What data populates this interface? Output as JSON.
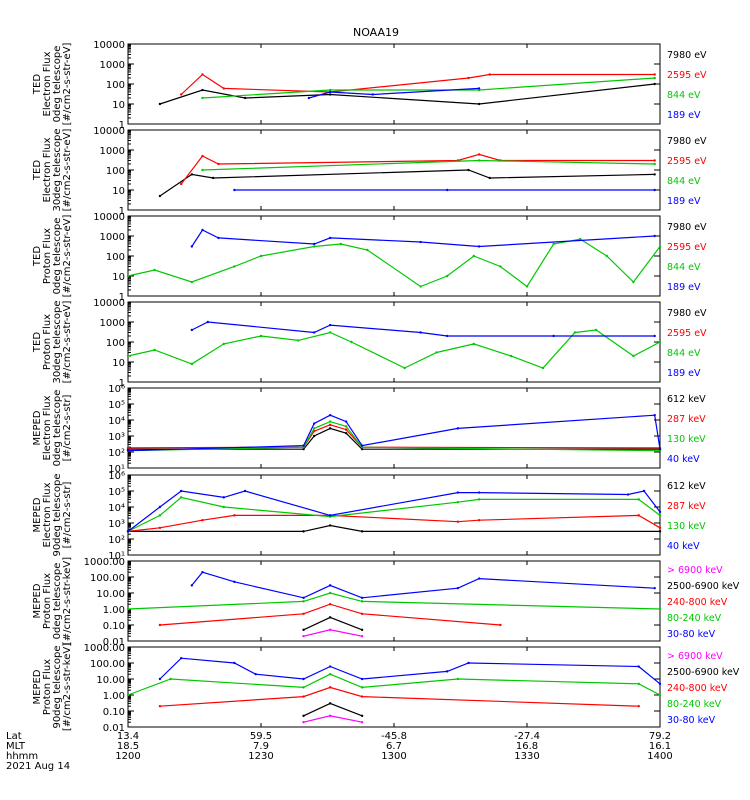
{
  "chart_data": [
    {
      "type": "line",
      "title": "NOAA19",
      "ylabel": [
        "TED",
        "Electron Flux",
        "0deg telescope",
        "[#/cm2-s-str-eV]"
      ],
      "yscale": "log",
      "ylim": [
        1,
        10000
      ],
      "ytick_labels": [
        "1",
        "10",
        "100",
        "1000",
        "10000"
      ],
      "series": [
        {
          "name": "7980 eV",
          "color": "#000000",
          "x": [
            0.06,
            0.14,
            0.22,
            0.38,
            0.66,
            0.99
          ],
          "values": [
            10,
            50,
            20,
            30,
            10,
            100
          ]
        },
        {
          "name": "2595 eV",
          "color": "#ff0000",
          "x": [
            0.1,
            0.14,
            0.18,
            0.38,
            0.64,
            0.68,
            0.99
          ],
          "values": [
            30,
            300,
            60,
            40,
            200,
            300,
            300
          ]
        },
        {
          "name": "844 eV",
          "color": "#00c800",
          "x": [
            0.14,
            0.38,
            0.66,
            0.99
          ],
          "values": [
            20,
            50,
            50,
            200
          ]
        },
        {
          "name": "189 eV",
          "color": "#0000ff",
          "x": [
            0.34,
            0.38,
            0.46,
            0.66
          ],
          "values": [
            20,
            40,
            30,
            60
          ]
        }
      ]
    },
    {
      "type": "line",
      "ylabel": [
        "TED",
        "Electron Flux",
        "30deg telescope",
        "[#/cm2-s-str-eV]"
      ],
      "yscale": "log",
      "ylim": [
        1,
        10000
      ],
      "ytick_labels": [
        "1",
        "10",
        "100",
        "1000",
        "10000"
      ],
      "series": [
        {
          "name": "7980 eV",
          "color": "#000000",
          "x": [
            0.06,
            0.12,
            0.16,
            0.64,
            0.68,
            0.99
          ],
          "values": [
            5,
            60,
            40,
            100,
            40,
            60
          ]
        },
        {
          "name": "2595 eV",
          "color": "#ff0000",
          "x": [
            0.1,
            0.14,
            0.17,
            0.62,
            0.66,
            0.7,
            0.99
          ],
          "values": [
            20,
            500,
            200,
            300,
            600,
            300,
            300
          ]
        },
        {
          "name": "844 eV",
          "color": "#00c800",
          "x": [
            0.14,
            0.66,
            0.99
          ],
          "values": [
            100,
            300,
            200
          ]
        },
        {
          "name": "189 eV",
          "color": "#0000ff",
          "x": [
            0.2,
            0.6,
            0.99
          ],
          "values": [
            10,
            10,
            10
          ]
        }
      ]
    },
    {
      "type": "line",
      "ylabel": [
        "TED",
        "Proton Flux",
        "0deg telescope",
        "[#/cm2-s-str-eV]"
      ],
      "yscale": "log",
      "ylim": [
        1,
        10000
      ],
      "ytick_labels": [
        "1",
        "10",
        "100",
        "1000",
        "10000"
      ],
      "series": [
        {
          "name": "7980 eV",
          "color": "#000000",
          "x": [],
          "values": []
        },
        {
          "name": "2595 eV",
          "color": "#ff0000",
          "x": [],
          "values": []
        },
        {
          "name": "844 eV",
          "color": "#00c800",
          "x": [
            0.0,
            0.05,
            0.12,
            0.2,
            0.25,
            0.35,
            0.4,
            0.45,
            0.55,
            0.6,
            0.65,
            0.7,
            0.75,
            0.8,
            0.85,
            0.9,
            0.95,
            1.0
          ],
          "values": [
            10,
            20,
            5,
            30,
            100,
            300,
            400,
            200,
            3,
            10,
            100,
            30,
            3,
            400,
            700,
            100,
            5,
            300
          ]
        },
        {
          "name": "189 eV",
          "color": "#0000ff",
          "x": [
            0.12,
            0.14,
            0.17,
            0.35,
            0.38,
            0.55,
            0.66,
            0.99
          ],
          "values": [
            300,
            2000,
            800,
            400,
            800,
            500,
            300,
            1000
          ]
        }
      ]
    },
    {
      "type": "line",
      "ylabel": [
        "TED",
        "Proton Flux",
        "30deg telescope",
        "[#/cm2-s-str-eV]"
      ],
      "yscale": "log",
      "ylim": [
        1,
        10000
      ],
      "ytick_labels": [
        "1",
        "10",
        "100",
        "1000",
        "10000"
      ],
      "series": [
        {
          "name": "7980 eV",
          "color": "#000000",
          "x": [],
          "values": []
        },
        {
          "name": "2595 eV",
          "color": "#ff0000",
          "x": [],
          "values": []
        },
        {
          "name": "844 eV",
          "color": "#00c800",
          "x": [
            0.0,
            0.05,
            0.12,
            0.18,
            0.25,
            0.32,
            0.38,
            0.42,
            0.52,
            0.58,
            0.65,
            0.72,
            0.78,
            0.84,
            0.88,
            0.95,
            1.0
          ],
          "values": [
            20,
            40,
            8,
            80,
            200,
            120,
            300,
            100,
            5,
            30,
            80,
            20,
            5,
            300,
            400,
            20,
            100
          ]
        },
        {
          "name": "189 eV",
          "color": "#0000ff",
          "x": [
            0.12,
            0.15,
            0.35,
            0.38,
            0.55,
            0.6,
            0.8,
            0.99
          ],
          "values": [
            400,
            1000,
            300,
            700,
            300,
            200,
            200,
            200
          ]
        }
      ]
    },
    {
      "type": "line",
      "ylabel": [
        "MEPED",
        "Electron Flux",
        "0deg telescope",
        "[#/cm2-s-str]"
      ],
      "yscale": "log",
      "ylim": [
        10,
        1000000
      ],
      "ytick_labels": [
        "10¹",
        "10²",
        "10³",
        "10⁴",
        "10⁵",
        "10⁶"
      ],
      "series": [
        {
          "name": "612 keV",
          "color": "#000000",
          "x": [
            0.0,
            0.33,
            0.35,
            0.38,
            0.41,
            0.44,
            1.0
          ],
          "values": [
            150,
            150,
            1000,
            3000,
            1500,
            150,
            150
          ]
        },
        {
          "name": "287 keV",
          "color": "#ff0000",
          "x": [
            0.0,
            0.33,
            0.35,
            0.38,
            0.41,
            0.44,
            1.0
          ],
          "values": [
            180,
            200,
            2000,
            5000,
            2500,
            200,
            180
          ]
        },
        {
          "name": "130 keV",
          "color": "#00c800",
          "x": [
            0.0,
            0.33,
            0.35,
            0.38,
            0.41,
            0.44,
            1.0
          ],
          "values": [
            120,
            200,
            3000,
            8000,
            4000,
            200,
            120
          ]
        },
        {
          "name": "40 keV",
          "color": "#0000ff",
          "x": [
            0.0,
            0.33,
            0.35,
            0.38,
            0.41,
            0.44,
            0.62,
            0.99,
            1.0
          ],
          "values": [
            120,
            250,
            6000,
            20000,
            8000,
            250,
            3000,
            20000,
            150
          ]
        }
      ]
    },
    {
      "type": "line",
      "ylabel": [
        "MEPED",
        "Electron Flux",
        "90deg telescope",
        "[#/cm2-s-str]"
      ],
      "yscale": "log",
      "ylim": [
        10,
        1000000
      ],
      "ytick_labels": [
        "10¹",
        "10²",
        "10³",
        "10⁴",
        "10⁵",
        "10⁶"
      ],
      "series": [
        {
          "name": "612 keV",
          "color": "#000000",
          "x": [
            0.0,
            0.33,
            0.38,
            0.44,
            1.0
          ],
          "values": [
            300,
            300,
            700,
            300,
            300
          ]
        },
        {
          "name": "287 keV",
          "color": "#ff0000",
          "x": [
            0.0,
            0.06,
            0.14,
            0.2,
            0.38,
            0.62,
            0.66,
            0.96,
            1.0
          ],
          "values": [
            300,
            500,
            1500,
            3000,
            3000,
            1200,
            1500,
            3000,
            500
          ]
        },
        {
          "name": "130 keV",
          "color": "#00c800",
          "x": [
            0.0,
            0.06,
            0.1,
            0.18,
            0.38,
            0.62,
            0.66,
            0.96,
            1.0
          ],
          "values": [
            300,
            3000,
            40000,
            10000,
            2500,
            20000,
            30000,
            30000,
            3000
          ]
        },
        {
          "name": "40 keV",
          "color": "#0000ff",
          "x": [
            0.0,
            0.06,
            0.1,
            0.18,
            0.22,
            0.38,
            0.62,
            0.66,
            0.94,
            0.97,
            1.0
          ],
          "values": [
            300,
            10000,
            100000,
            40000,
            100000,
            3000,
            80000,
            80000,
            60000,
            100000,
            5000
          ]
        }
      ]
    },
    {
      "type": "line",
      "ylabel": [
        "MEPED",
        "Proton Flux",
        "0deg telescope",
        "[#/cm2-s-str-keV]"
      ],
      "yscale": "log",
      "ylim": [
        0.01,
        1000
      ],
      "ytick_labels": [
        "0.01",
        "0.10",
        "1.00",
        "10.00",
        "100.00",
        "1000.00"
      ],
      "series": [
        {
          "name": "> 6900 keV",
          "color": "#ff00ff",
          "x": [
            0.33,
            0.38,
            0.44
          ],
          "values": [
            0.02,
            0.05,
            0.02
          ]
        },
        {
          "name": "2500-6900 keV",
          "color": "#000000",
          "x": [
            0.33,
            0.38,
            0.44
          ],
          "values": [
            0.05,
            0.3,
            0.05
          ]
        },
        {
          "name": "240-800 keV",
          "color": "#ff0000",
          "x": [
            0.06,
            0.33,
            0.38,
            0.44,
            0.7
          ],
          "values": [
            0.1,
            0.5,
            2,
            0.5,
            0.1
          ]
        },
        {
          "name": "80-240 keV",
          "color": "#00c800",
          "x": [
            0.0,
            0.33,
            0.38,
            0.44,
            1.0
          ],
          "values": [
            1,
            3,
            10,
            3,
            1
          ]
        },
        {
          "name": "30-80 keV",
          "color": "#0000ff",
          "x": [
            0.12,
            0.14,
            0.2,
            0.33,
            0.38,
            0.44,
            0.62,
            0.66,
            0.99
          ],
          "values": [
            30,
            200,
            50,
            5,
            30,
            5,
            20,
            80,
            20
          ]
        }
      ]
    },
    {
      "type": "line",
      "ylabel": [
        "MEPED",
        "Proton Flux",
        "90deg telescope",
        "[#/cm2-s-str-keV]"
      ],
      "yscale": "log",
      "ylim": [
        0.01,
        1000
      ],
      "ytick_labels": [
        "0.01",
        "0.10",
        "1.00",
        "10.00",
        "100.00",
        "1000.00"
      ],
      "series": [
        {
          "name": "> 6900 keV",
          "color": "#ff00ff",
          "x": [
            0.33,
            0.38,
            0.44
          ],
          "values": [
            0.02,
            0.05,
            0.02
          ]
        },
        {
          "name": "2500-6900 keV",
          "color": "#000000",
          "x": [
            0.33,
            0.38,
            0.44
          ],
          "values": [
            0.05,
            0.3,
            0.05
          ]
        },
        {
          "name": "240-800 keV",
          "color": "#ff0000",
          "x": [
            0.06,
            0.33,
            0.38,
            0.44,
            0.96
          ],
          "values": [
            0.2,
            0.8,
            3,
            0.8,
            0.2
          ]
        },
        {
          "name": "80-240 keV",
          "color": "#00c800",
          "x": [
            0.0,
            0.08,
            0.33,
            0.38,
            0.44,
            0.62,
            0.96,
            1.0
          ],
          "values": [
            1,
            10,
            3,
            20,
            3,
            10,
            5,
            1
          ]
        },
        {
          "name": "30-80 keV",
          "color": "#0000ff",
          "x": [
            0.06,
            0.1,
            0.2,
            0.24,
            0.33,
            0.38,
            0.44,
            0.6,
            0.64,
            0.96,
            1.0
          ],
          "values": [
            10,
            200,
            100,
            20,
            10,
            60,
            10,
            30,
            100,
            60,
            5
          ]
        }
      ]
    }
  ],
  "xaxis": {
    "row_labels": [
      "Lat",
      "MLT",
      "hhmm",
      "2021 Aug 14"
    ],
    "ticks": [
      {
        "lat": "13.4",
        "mlt": "18.5",
        "hhmm": "1200"
      },
      {
        "lat": "59.5",
        "mlt": "7.9",
        "hhmm": "1230"
      },
      {
        "lat": "-45.8",
        "mlt": "6.7",
        "hhmm": "1300"
      },
      {
        "lat": "-27.4",
        "mlt": "16.8",
        "hhmm": "1330"
      },
      {
        "lat": "79.2",
        "mlt": "16.1",
        "hhmm": "1400"
      }
    ]
  }
}
